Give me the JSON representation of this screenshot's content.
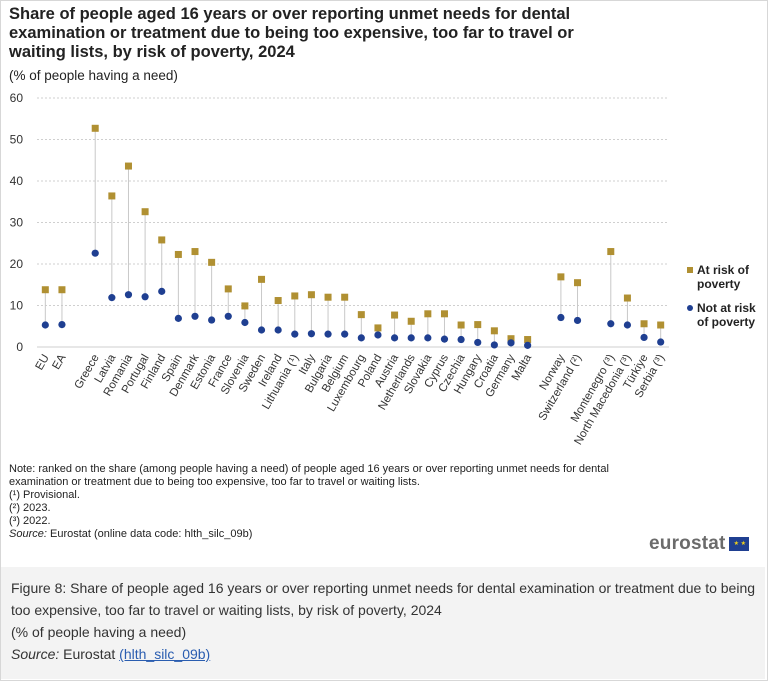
{
  "title": "Share of people aged 16 years or over reporting unmet needs for dental examination or treatment due to being too expensive, too far to travel or waiting lists, by risk of poverty, 2024",
  "subtitle": "(% of people having a need)",
  "legend": {
    "at_risk": "At risk of poverty",
    "not_at_risk": "Not at risk of poverty"
  },
  "colors": {
    "at_risk": "#b09032",
    "not_at_risk": "#1f3f91",
    "grid": "#cfcfcf"
  },
  "notes": {
    "note": "Note: ranked on the share (among people having a need) of people aged 16 years or over reporting unmet needs for dental examination or treatment due to being too expensive, too far to travel or waiting lists.",
    "n1": "(¹) Provisional.",
    "n2": "(²) 2023.",
    "n3": "(³) 2022.",
    "source_label": "Source:",
    "source_text": "Eurostat (online data code: hlth_silc_09b)"
  },
  "logo": {
    "text": "eurostat",
    "icon": "eu-flag-icon"
  },
  "caption": {
    "figure": "Figure 8: Share of people aged 16 years or over reporting unmet needs for dental examination or treatment due to being too expensive, too far to travel or waiting lists, by risk of poverty, 2024",
    "unit": "(% of people having a need)",
    "source_label": "Source:",
    "source_text": "Eurostat",
    "source_link": "(hlth_silc_09b)"
  },
  "chart_data": {
    "type": "scatter",
    "title": "Share of people aged 16 years or over reporting unmet needs for dental examination or treatment due to being too expensive, too far to travel or waiting lists, by risk of poverty, 2024",
    "ylabel": "(% of people having a need)",
    "ylim": [
      0,
      60
    ],
    "yticks": [
      0,
      10,
      20,
      30,
      40,
      50,
      60
    ],
    "grid": true,
    "legend_position": "right",
    "categories": [
      "EU",
      "EA",
      "",
      "Greece",
      "Latvia",
      "Romania",
      "Portugal",
      "Finland",
      "Spain",
      "Denmark",
      "Estonia",
      "France",
      "Slovenia",
      "Sweden",
      "Ireland",
      "Lithuania (¹)",
      "Italy",
      "Bulgaria",
      "Belgium",
      "Luxembourg",
      "Poland",
      "Austria",
      "Netherlands",
      "Slovakia",
      "Cyprus",
      "Czechia",
      "Hungary",
      "Croatia",
      "Germany",
      "Malta",
      "",
      "Norway",
      "Switzerland (²)",
      "",
      "Montenegro (³)",
      "North Macedonia (³)",
      "Türkiye",
      "Serbia (³)"
    ],
    "series": [
      {
        "name": "At risk of poverty",
        "marker": "square",
        "values": [
          13.8,
          13.8,
          null,
          52.7,
          36.4,
          43.6,
          32.6,
          25.8,
          22.3,
          23.0,
          20.4,
          14.0,
          9.9,
          16.3,
          11.2,
          12.3,
          12.6,
          12.0,
          12.0,
          7.8,
          4.6,
          7.7,
          6.2,
          8.0,
          8.0,
          5.3,
          5.4,
          3.9,
          2.0,
          1.8,
          null,
          16.9,
          15.5,
          null,
          23.0,
          11.8,
          5.6,
          5.3
        ]
      },
      {
        "name": "Not at risk of poverty",
        "marker": "circle",
        "values": [
          5.3,
          5.4,
          null,
          22.6,
          11.9,
          12.6,
          12.1,
          13.4,
          6.9,
          7.4,
          6.5,
          7.4,
          5.9,
          4.1,
          4.1,
          3.1,
          3.2,
          3.1,
          3.1,
          2.2,
          2.9,
          2.2,
          2.2,
          2.2,
          1.9,
          1.8,
          1.1,
          0.5,
          1.0,
          0.4,
          null,
          7.1,
          6.4,
          null,
          5.6,
          5.3,
          2.3,
          1.2
        ]
      }
    ]
  }
}
